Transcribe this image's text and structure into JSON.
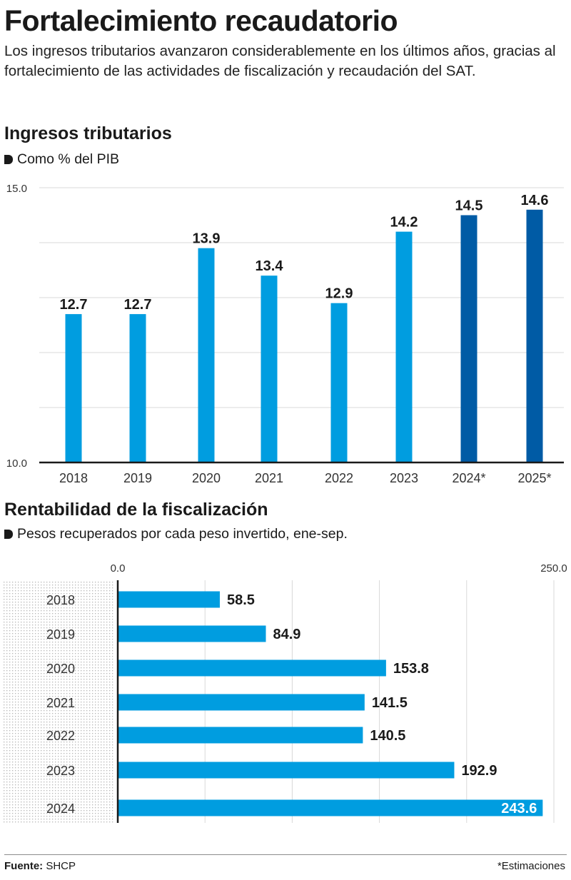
{
  "header": {
    "title": "Fortalecimiento recaudatorio",
    "subtitle": "Los ingresos tributarios avanzaron considerablemente en los últimos años, gracias al fortalecimiento de las actividades de fiscalización y recaudación del SAT."
  },
  "colors": {
    "bar_actual": "#009de0",
    "bar_estimate": "#005ba5",
    "gridline": "#d9d9d9",
    "axis": "#1a1a1a",
    "label": "#1a1a1a",
    "tick": "#333333"
  },
  "chart_data": [
    {
      "type": "bar",
      "title": "Ingresos tributarios",
      "subtitle": "Como % del PIB",
      "xlabel": "",
      "ylabel": "",
      "categories": [
        "2018",
        "2019",
        "2020",
        "2021",
        "2022",
        "2023",
        "2024*",
        "2025*"
      ],
      "values": [
        12.7,
        12.7,
        13.9,
        13.4,
        12.9,
        14.2,
        14.5,
        14.6
      ],
      "estimates": [
        false,
        false,
        false,
        false,
        false,
        false,
        true,
        true
      ],
      "data_labels": [
        "12.7",
        "12.7",
        "13.9",
        "13.4",
        "12.9",
        "14.2",
        "14.5",
        "14.6"
      ],
      "ylim": [
        10.0,
        15.0
      ],
      "yticks": [
        10.0,
        11.0,
        12.0,
        13.0,
        14.0,
        15.0
      ],
      "ytick_labels": [
        "10.0",
        "",
        "",
        "",
        "",
        "15.0"
      ],
      "grid": true,
      "legend": "none"
    },
    {
      "type": "bar",
      "orientation": "horizontal",
      "title": "Rentabilidad de la fiscalización",
      "subtitle": "Pesos recuperados por cada peso invertido, ene-sep.",
      "categories": [
        "2018",
        "2019",
        "2020",
        "2021",
        "2022",
        "2023",
        "2024"
      ],
      "values": [
        58.5,
        84.9,
        153.8,
        141.5,
        140.5,
        192.9,
        243.6
      ],
      "data_labels": [
        "58.5",
        "84.9",
        "153.8",
        "141.5",
        "140.5",
        "192.9",
        "243.6"
      ],
      "xlim": [
        0.0,
        250.0
      ],
      "xticks": [
        0,
        50,
        100,
        150,
        200,
        250
      ],
      "xtick_labels": [
        "0.0",
        "",
        "",
        "",
        "",
        "250.0"
      ],
      "grid": true,
      "legend": "none"
    }
  ],
  "footer": {
    "source_label": "Fuente:",
    "source_value": "SHCP",
    "note": "*Estimaciones"
  }
}
